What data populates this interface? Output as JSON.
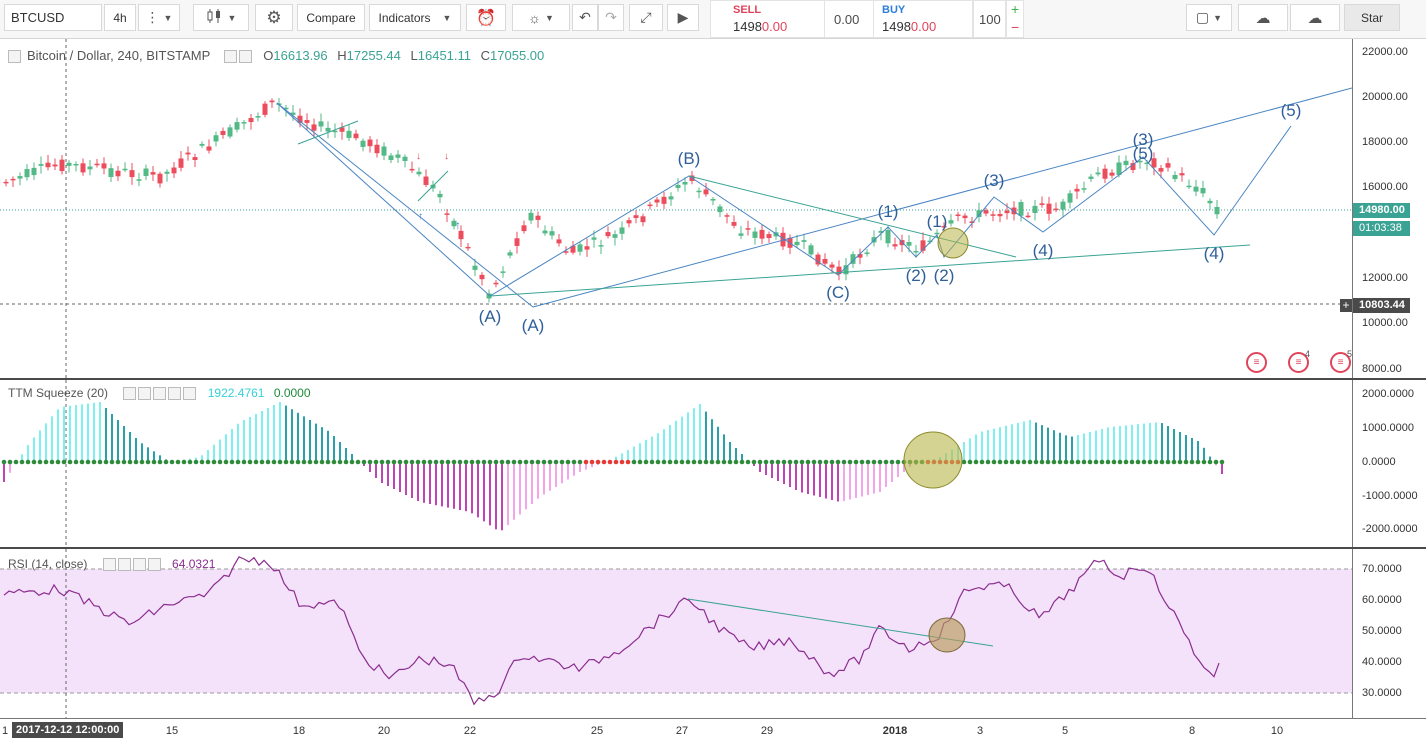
{
  "toolbar": {
    "symbol": "BTCUSD",
    "interval": "4h",
    "compare_label": "Compare",
    "indicators_label": "Indicators",
    "star_label": "Star",
    "sell_label": "SELL",
    "sell_price_a": "1498",
    "sell_price_b": "0.00",
    "spread": "0.00",
    "buy_label": "BUY",
    "buy_price_a": "1498",
    "buy_price_b": "0.00",
    "quantity": "100",
    "plus": "+",
    "minus": "−",
    "icons": [
      "bars-dots-icon",
      "candles-icon",
      "gear-icon",
      "alert-clock-icon",
      "bulb-icon",
      "undo-icon",
      "redo-icon",
      "fullscreen-icon",
      "replay-icon",
      "square-icon",
      "cloud-download-icon",
      "cloud-upload-icon"
    ]
  },
  "main": {
    "title": "Bitcoin / Dollar, 240, BITSTAMP",
    "o_label": "O",
    "o_value": "16613.96",
    "h_label": "H",
    "h_value": "17255.44",
    "l_label": "L",
    "l_value": "16451.11",
    "c_label": "C",
    "c_value": "17055.00",
    "price_badge": "14980.00",
    "timer_badge": "01:03:38",
    "crosshair_badge": "10803.44",
    "axis_ticks": [
      "22000.00",
      "20000.00",
      "18000.00",
      "16000.00",
      "14000.00",
      "12000.00",
      "10000.00",
      "8000.00"
    ],
    "flag_numbers": [
      "",
      "4",
      "5"
    ]
  },
  "wave_labels": {
    "a1": "(A)",
    "a2": "(A)",
    "b": "(B)",
    "c": "(C)",
    "w1a": "(1)",
    "w1b": "(1)",
    "w2a": "(2)",
    "w2b": "(2)",
    "w3a": "(3)",
    "w3b": "(3)",
    "w4a": "(4)",
    "w4b": "(4)",
    "w5a": "(5)",
    "w5b": "(5)"
  },
  "squeeze": {
    "label": "TTM Squeeze (20)",
    "value1": "1922.4761",
    "value2": "0.0000",
    "axis_ticks": [
      "2000.0000",
      "1000.0000",
      "0.0000",
      "-1000.0000",
      "-2000.0000"
    ]
  },
  "rsi": {
    "label": "RSI (14, close)",
    "value": "64.0321",
    "axis_ticks": [
      "70.0000",
      "60.0000",
      "50.0000",
      "40.0000",
      "30.0000"
    ]
  },
  "xaxis": {
    "crosshair_date": "2017-12-12 12:00:00",
    "ticks": [
      "1",
      "15",
      "18",
      "20",
      "22",
      "25",
      "27",
      "29",
      "2018",
      "3",
      "5",
      "8",
      "10"
    ]
  },
  "colors": {
    "up": "#53b987",
    "down": "#eb4d5c",
    "wave": "#4a85c2",
    "trend": "#3aa394",
    "squeeze_pos_light": "#7ff0f0",
    "squeeze_pos_dark": "#2aa1a8",
    "squeeze_neg_light": "#f4a4e8",
    "squeeze_neg_dark": "#c044b3",
    "rsi_line": "#8b2d8f",
    "rsi_band": "#f3e2fa"
  }
}
